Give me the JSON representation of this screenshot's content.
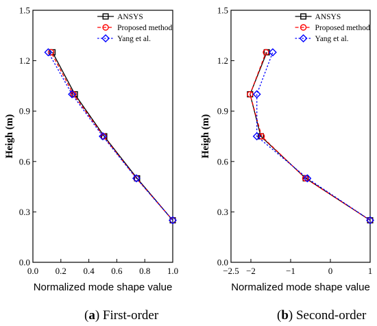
{
  "chart_data": [
    {
      "type": "line",
      "id": "a",
      "caption_letter": "a",
      "caption_text": "First-order",
      "xlabel": "Normalized mode shape value",
      "ylabel": "Heigh (m)",
      "xlim": [
        0.0,
        1.0
      ],
      "ylim": [
        0.0,
        1.5
      ],
      "xticks": [
        0.0,
        0.2,
        0.4,
        0.6,
        0.8,
        1.0
      ],
      "xtick_labels": [
        "0.0",
        "0.2",
        "0.4",
        "0.6",
        "0.8",
        "1.0"
      ],
      "yticks": [
        0.0,
        0.3,
        0.6,
        0.9,
        1.2,
        1.5
      ],
      "ytick_labels": [
        "0.0",
        "0.3",
        "0.6",
        "0.9",
        "1.2",
        "1.5"
      ],
      "legend_position": "top-right",
      "series": [
        {
          "name": "ANSYS",
          "color": "#000000",
          "marker": "square",
          "dash": "solid",
          "x": [
            1.0,
            0.745,
            0.51,
            0.3,
            0.14
          ],
          "y": [
            0.25,
            0.5,
            0.75,
            1.0,
            1.25
          ]
        },
        {
          "name": "Proposed method",
          "color": "#ff0000",
          "marker": "circle",
          "dash": "dashed",
          "x": [
            1.0,
            0.74,
            0.505,
            0.29,
            0.13
          ],
          "y": [
            0.25,
            0.5,
            0.75,
            1.0,
            1.25
          ]
        },
        {
          "name": "Yang et al.",
          "color": "#0000ff",
          "marker": "diamond",
          "dash": "dotted",
          "x": [
            1.0,
            0.74,
            0.5,
            0.28,
            0.11
          ],
          "y": [
            0.25,
            0.5,
            0.75,
            1.0,
            1.25
          ]
        }
      ]
    },
    {
      "type": "line",
      "id": "b",
      "caption_letter": "b",
      "caption_text": "Second-order",
      "xlabel": "Normalized mode shape value",
      "ylabel": "Heigh (m)",
      "xlim": [
        -2.5,
        1.0
      ],
      "ylim": [
        0.0,
        1.5
      ],
      "xticks": [
        -2.5,
        -2.0,
        -1.0,
        0.0,
        1.0
      ],
      "xtick_labels": [
        "−2.5",
        "−2",
        "−1",
        "0",
        "1"
      ],
      "yticks": [
        0.0,
        0.3,
        0.6,
        0.9,
        1.2,
        1.5
      ],
      "ytick_labels": [
        "0.0",
        "0.3",
        "0.6",
        "0.9",
        "1.2",
        "1.5"
      ],
      "legend_position": "top-right",
      "series": [
        {
          "name": "ANSYS",
          "color": "#000000",
          "marker": "square",
          "dash": "solid",
          "x": [
            1.0,
            -0.62,
            -1.75,
            -2.02,
            -1.6
          ],
          "y": [
            0.25,
            0.5,
            0.75,
            1.0,
            1.25
          ]
        },
        {
          "name": "Proposed method",
          "color": "#ff0000",
          "marker": "circle",
          "dash": "dashed",
          "x": [
            1.0,
            -0.63,
            -1.73,
            -2.02,
            -1.62
          ],
          "y": [
            0.25,
            0.5,
            0.75,
            1.0,
            1.25
          ]
        },
        {
          "name": "Yang et al.",
          "color": "#0000ff",
          "marker": "diamond",
          "dash": "dotted",
          "x": [
            1.0,
            -0.58,
            -1.85,
            -1.85,
            -1.45
          ],
          "y": [
            0.25,
            0.5,
            0.75,
            1.0,
            1.25
          ]
        }
      ]
    }
  ]
}
